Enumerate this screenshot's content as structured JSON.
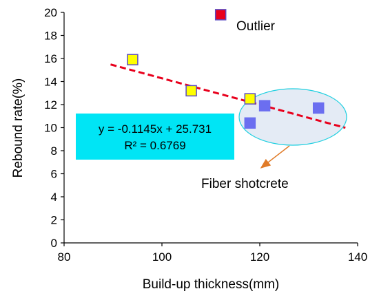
{
  "chart_data": {
    "type": "scatter",
    "xlabel": "Build-up thickness(mm)",
    "ylabel": "Rebound rate(%)",
    "xlim": [
      80,
      140
    ],
    "ylim": [
      0,
      20
    ],
    "x_ticks": [
      80,
      100,
      120,
      140
    ],
    "y_ticks": [
      0,
      2,
      4,
      6,
      8,
      10,
      12,
      14,
      16,
      18,
      20
    ],
    "grid": false,
    "series": [
      {
        "group": "plain",
        "color": "#ffff00",
        "edge_color": "#5b4bc4",
        "marker": "square",
        "points": [
          {
            "x": 94,
            "y": 15.9
          },
          {
            "x": 106,
            "y": 13.2
          },
          {
            "x": 118,
            "y": 12.5
          }
        ]
      },
      {
        "group": "fiber",
        "color": "#6b6ef0",
        "edge_color": "#6b6ef0",
        "marker": "square",
        "points": [
          {
            "x": 118,
            "y": 10.4
          },
          {
            "x": 121,
            "y": 11.9
          },
          {
            "x": 132,
            "y": 11.7
          }
        ]
      },
      {
        "group": "outlier",
        "color": "#e8001c",
        "edge_color": "#5b4bc4",
        "marker": "square",
        "points": [
          {
            "x": 112,
            "y": 19.8
          }
        ]
      }
    ],
    "trendline": {
      "slope": -0.1145,
      "intercept": 25.731,
      "x_range": [
        89.5,
        137.5
      ],
      "color": "#e8001c",
      "style": "dashed"
    },
    "equation_box": {
      "line1": "y = -0.1145x + 25.731",
      "line2": "R² = 0.6769",
      "fill": "#00e5f5"
    },
    "annotations": {
      "outlier_label": "Outlier",
      "fiber_label": "Fiber shotcrete",
      "ellipse_fill": "#e4ebf5",
      "ellipse_edge": "#1ecfe0",
      "arrow_color": "#e07b28"
    }
  }
}
